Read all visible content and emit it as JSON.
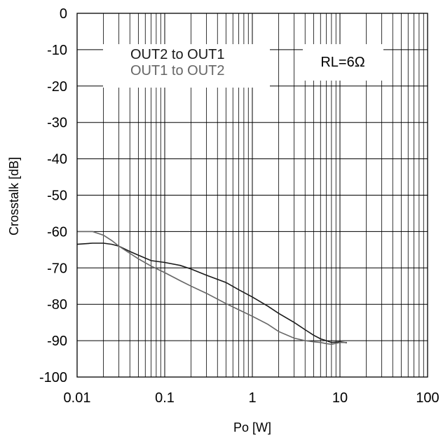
{
  "chart_data": {
    "type": "line",
    "title": "",
    "xlabel": "Po [W]",
    "ylabel": "Crosstalk [dB]",
    "xscale": "log",
    "xlim": [
      0.01,
      100
    ],
    "ylim": [
      -100,
      0
    ],
    "grid": true,
    "x_ticks": [
      "0.01",
      "0.1",
      "1",
      "10",
      "100"
    ],
    "y_ticks": [
      "0",
      "-10",
      "-20",
      "-30",
      "-40",
      "-50",
      "-60",
      "-70",
      "-80",
      "-90",
      "-100"
    ],
    "annotation": "RL=6Ω",
    "legend_position": "top-left",
    "series": [
      {
        "name": "OUT2 to OUT1",
        "color": "#1a1a1a",
        "x": [
          0.01,
          0.015,
          0.02,
          0.025,
          0.03,
          0.04,
          0.05,
          0.07,
          0.1,
          0.15,
          0.2,
          0.3,
          0.5,
          0.7,
          1,
          1.5,
          2,
          3,
          4,
          5,
          6,
          7,
          8,
          10,
          12
        ],
        "y": [
          -63.5,
          -63.2,
          -63.2,
          -63.5,
          -64,
          -65.5,
          -66.5,
          -68,
          -68.5,
          -69.3,
          -70.3,
          -72,
          -74,
          -76,
          -78,
          -80.5,
          -82.5,
          -85,
          -87,
          -88.5,
          -89.5,
          -90,
          -90.5,
          -90.3,
          -90.6
        ]
      },
      {
        "name": "OUT1 to OUT2",
        "color": "#666666",
        "x": [
          0.01,
          0.015,
          0.02,
          0.025,
          0.03,
          0.04,
          0.05,
          0.07,
          0.1,
          0.15,
          0.2,
          0.3,
          0.5,
          0.7,
          1,
          1.5,
          2,
          3,
          4,
          5,
          6,
          7,
          8,
          10,
          12
        ],
        "y": [
          -60,
          -60,
          -61,
          -62.5,
          -64,
          -66,
          -67.5,
          -69.5,
          -71.3,
          -73.5,
          -75,
          -77,
          -79.8,
          -81.5,
          -83.3,
          -85.5,
          -87.5,
          -89.3,
          -90,
          -90.3,
          -90.5,
          -90.8,
          -91,
          -90.5,
          -90.5
        ]
      }
    ]
  }
}
